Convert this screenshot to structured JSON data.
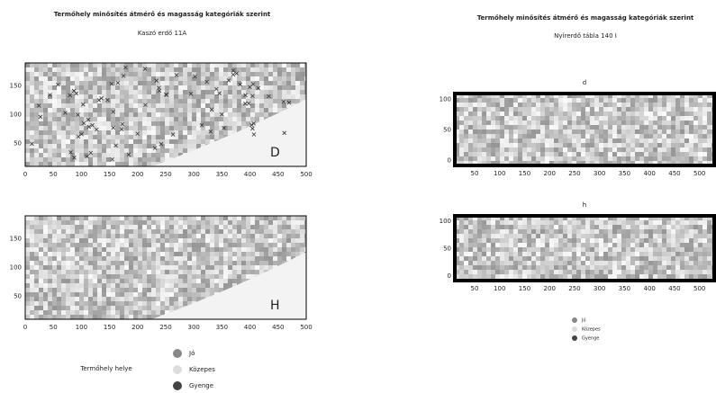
{
  "left": {
    "title": "Termőhely minősítés átmérő és magasság kategóriák szerint",
    "subtitle": "Kaszó erdő 11A",
    "panels": [
      {
        "label": "D",
        "yticks": [
          "150",
          "100",
          "50"
        ],
        "xticks": [
          "0",
          "50",
          "100",
          "150",
          "200",
          "250",
          "300",
          "350",
          "400",
          "450",
          "500"
        ]
      },
      {
        "label": "H",
        "yticks": [
          "150",
          "100",
          "50"
        ],
        "xticks": [
          "0",
          "50",
          "100",
          "150",
          "200",
          "250",
          "300",
          "350",
          "400",
          "450",
          "500"
        ]
      }
    ],
    "legend_title": "Termőhely helye",
    "legend": [
      "Jó",
      "Közepes",
      "Gyenge"
    ]
  },
  "right": {
    "title": "Termőhely minősítés átmérő és magasság kategóriák szerint",
    "subtitle": "Nyírerdő tábla 140 I",
    "panels": [
      {
        "label": "d",
        "yticks": [
          "100",
          "50",
          "0"
        ],
        "xticks": [
          "50",
          "100",
          "150",
          "200",
          "250",
          "300",
          "350",
          "400",
          "450",
          "500"
        ]
      },
      {
        "label": "h",
        "yticks": [
          "100",
          "50",
          "0"
        ],
        "xticks": [
          "50",
          "100",
          "150",
          "200",
          "250",
          "300",
          "350",
          "400",
          "450",
          "500"
        ]
      }
    ],
    "legend": [
      "Jó",
      "Közepes",
      "Gyenge"
    ]
  }
}
